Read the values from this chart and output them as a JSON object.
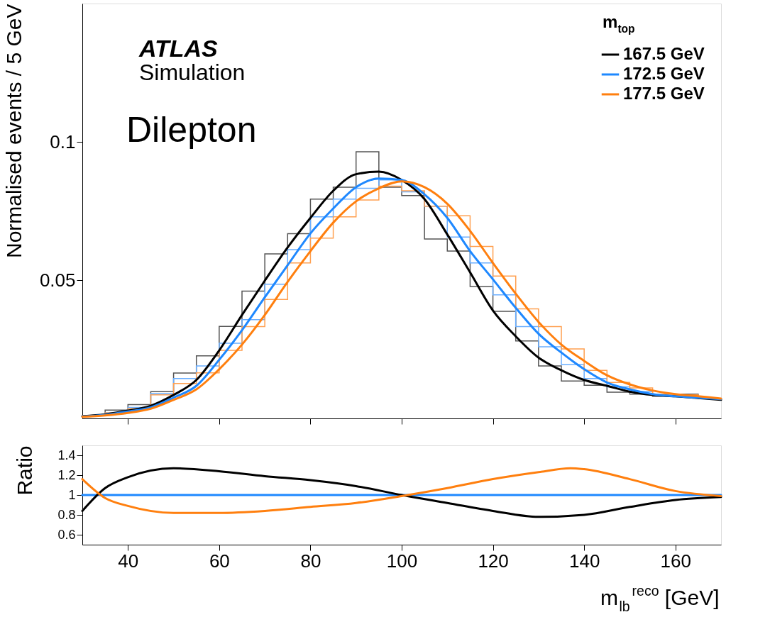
{
  "chart_data": [
    {
      "type": "line",
      "ylabel": "Normalised events / 5 GeV",
      "legend_title": "m$_{top}$",
      "legend": "top right",
      "grid": false,
      "tick_labels": "y",
      "annotations": [
        "ATLAS",
        "Simulation",
        "Dilepton"
      ],
      "xlim": [
        30,
        170
      ],
      "xticks": [
        40,
        60,
        80,
        100,
        120,
        140,
        160
      ],
      "ylim": [
        0,
        0.15
      ],
      "yticks": [
        0.05,
        0.1
      ],
      "series": [
        {
          "type": "histogram",
          "color": "#555555",
          "bins": [
            30,
            35,
            40,
            45,
            50,
            55,
            60,
            65,
            70,
            75,
            80,
            85,
            90,
            95,
            100,
            105,
            110,
            115,
            120,
            125,
            130,
            135,
            140,
            145,
            150,
            155,
            160,
            165,
            170
          ],
          "values": [
            0.001,
            0.003,
            0.005,
            0.0097,
            0.0164,
            0.0226,
            0.0333,
            0.046,
            0.0595,
            0.0668,
            0.0793,
            0.0836,
            0.0964,
            0.0836,
            0.0806,
            0.0649,
            0.0605,
            0.0477,
            0.0387,
            0.028,
            0.019,
            0.0135,
            0.012,
            0.0095,
            0.0088,
            0.008,
            0.0088,
            0.0072
          ]
        },
        {
          "type": "histogram",
          "color": "#6aaeff",
          "bins": [
            30,
            35,
            40,
            45,
            50,
            55,
            60,
            65,
            70,
            75,
            80,
            85,
            90,
            95,
            100,
            105,
            110,
            115,
            120,
            125,
            130,
            135,
            140,
            145,
            150,
            155,
            160,
            165,
            170
          ],
          "values": [
            0.001,
            0.002,
            0.004,
            0.009,
            0.0144,
            0.019,
            0.0272,
            0.0357,
            0.0485,
            0.061,
            0.0729,
            0.0793,
            0.0832,
            0.0862,
            0.0819,
            0.0767,
            0.0656,
            0.0562,
            0.0447,
            0.0332,
            0.0259,
            0.0195,
            0.0144,
            0.0114,
            0.0097,
            0.0085,
            0.008,
            0.0072
          ]
        },
        {
          "type": "histogram",
          "color": "#ffa050",
          "bins": [
            30,
            35,
            40,
            45,
            50,
            55,
            60,
            65,
            70,
            75,
            80,
            85,
            90,
            95,
            100,
            105,
            110,
            115,
            120,
            125,
            130,
            135,
            140,
            145,
            150,
            155,
            160,
            165,
            170
          ],
          "values": [
            0.001,
            0.002,
            0.0035,
            0.0085,
            0.0126,
            0.0165,
            0.0246,
            0.0332,
            0.043,
            0.0562,
            0.0652,
            0.0729,
            0.079,
            0.084,
            0.0823,
            0.0767,
            0.0733,
            0.0622,
            0.0515,
            0.0396,
            0.0332,
            0.0251,
            0.0174,
            0.013,
            0.011,
            0.0088,
            0.0085,
            0.0072
          ]
        },
        {
          "type": "line",
          "name": "167.5 GeV",
          "color": "#000000",
          "x": [
            30,
            35,
            40,
            45,
            50,
            55,
            60,
            65,
            70,
            75,
            80,
            85,
            90,
            95,
            100,
            105,
            110,
            115,
            120,
            125,
            130,
            135,
            140,
            145,
            150,
            155,
            160,
            165,
            170
          ],
          "values": [
            0.0008,
            0.0015,
            0.0028,
            0.0046,
            0.0085,
            0.0139,
            0.0246,
            0.0374,
            0.0498,
            0.0618,
            0.0725,
            0.0823,
            0.0883,
            0.0892,
            0.0862,
            0.0793,
            0.0665,
            0.0528,
            0.039,
            0.0297,
            0.022,
            0.0174,
            0.0139,
            0.0118,
            0.0097,
            0.0085,
            0.008,
            0.0074,
            0.0067
          ]
        },
        {
          "type": "line",
          "name": "172.5 GeV",
          "color": "#1e88ff",
          "x": [
            30,
            35,
            40,
            45,
            50,
            55,
            60,
            65,
            70,
            75,
            80,
            85,
            90,
            95,
            100,
            105,
            110,
            115,
            120,
            125,
            130,
            135,
            140,
            145,
            150,
            155,
            160,
            165,
            170
          ],
          "values": [
            0.0007,
            0.0013,
            0.0025,
            0.004,
            0.0075,
            0.0118,
            0.0212,
            0.0319,
            0.0438,
            0.0554,
            0.0669,
            0.0759,
            0.0836,
            0.0867,
            0.0862,
            0.081,
            0.0725,
            0.0605,
            0.0503,
            0.04,
            0.0306,
            0.0238,
            0.0178,
            0.013,
            0.0105,
            0.0088,
            0.008,
            0.0075,
            0.007
          ]
        },
        {
          "type": "line",
          "name": "177.5 GeV",
          "color": "#ff7f0e",
          "x": [
            30,
            35,
            40,
            45,
            50,
            55,
            60,
            65,
            70,
            75,
            80,
            85,
            90,
            95,
            100,
            105,
            110,
            115,
            120,
            125,
            130,
            135,
            140,
            145,
            150,
            155,
            160,
            165,
            170
          ],
          "values": [
            0.0006,
            0.0011,
            0.002,
            0.0035,
            0.0067,
            0.0105,
            0.0178,
            0.0267,
            0.0374,
            0.0494,
            0.0605,
            0.0708,
            0.0785,
            0.0832,
            0.0857,
            0.0836,
            0.0776,
            0.0678,
            0.0562,
            0.0451,
            0.0349,
            0.0267,
            0.0208,
            0.0156,
            0.0123,
            0.0101,
            0.0088,
            0.008,
            0.0072
          ]
        }
      ]
    },
    {
      "type": "line",
      "xlabel": "m$_{lb}$$^{reco}$ [GeV]",
      "ylabel": "Ratio",
      "grid": false,
      "xlim": [
        30,
        170
      ],
      "xticks": [
        40,
        60,
        80,
        100,
        120,
        140,
        160
      ],
      "ylim": [
        0.5,
        1.5
      ],
      "yticks": [
        0.6,
        0.8,
        1,
        1.2,
        1.4
      ],
      "series": [
        {
          "color": "#1e88ff",
          "x": [
            30,
            170
          ],
          "values": [
            1,
            1
          ]
        },
        {
          "color": "#000000",
          "x": [
            30,
            35,
            40,
            50,
            60,
            70,
            80,
            90,
            100,
            110,
            120,
            130,
            140,
            150,
            160,
            170
          ],
          "values": [
            0.84,
            1.07,
            1.18,
            1.27,
            1.24,
            1.19,
            1.15,
            1.09,
            1.0,
            0.92,
            0.84,
            0.78,
            0.8,
            0.88,
            0.95,
            0.98
          ]
        },
        {
          "color": "#ff7f0e",
          "x": [
            30,
            35,
            40,
            50,
            60,
            70,
            80,
            90,
            100,
            110,
            120,
            130,
            137,
            140,
            150,
            160,
            170
          ],
          "values": [
            1.16,
            0.97,
            0.89,
            0.82,
            0.82,
            0.84,
            0.88,
            0.92,
            0.99,
            1.07,
            1.16,
            1.23,
            1.27,
            1.26,
            1.16,
            1.04,
            0.99
          ]
        }
      ]
    }
  ]
}
